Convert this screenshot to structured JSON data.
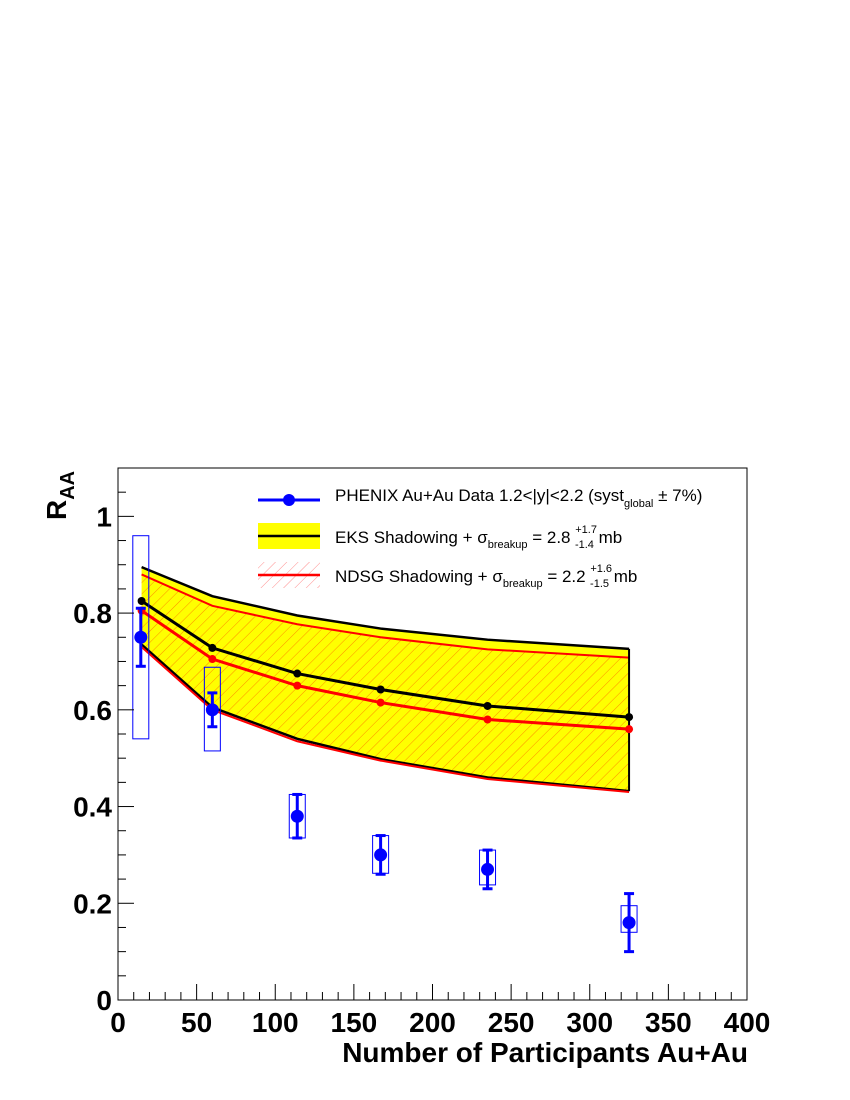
{
  "chart_data": {
    "type": "line",
    "xlabel": "Number of Participants Au+Au",
    "ylabel": "R",
    "ylabel_sub": "AA",
    "xlim": [
      0,
      400
    ],
    "ylim": [
      0,
      1.1
    ],
    "x_ticks": [
      0,
      50,
      100,
      150,
      200,
      250,
      300,
      350,
      400
    ],
    "x_tick_labels": [
      "0",
      "50",
      "100",
      "150",
      "200",
      "250",
      "300",
      "350",
      "400"
    ],
    "y_ticks": [
      0,
      0.2,
      0.4,
      0.6,
      0.8,
      1.0
    ],
    "y_tick_labels": [
      "0",
      "0.2",
      "0.4",
      "0.6",
      "0.8",
      "1"
    ],
    "grid": false,
    "legend_position": "top-right",
    "data_series": {
      "name": "PHENIX Au+Au Data 1.2<|y|<2.2 (syst",
      "name_sub": "global",
      "name_suffix": " ± 7%)",
      "color": "#0000ff",
      "x": [
        14.5,
        60,
        114,
        167,
        235,
        325
      ],
      "y": [
        0.75,
        0.6,
        0.38,
        0.3,
        0.27,
        0.16
      ],
      "stat_err": [
        0.06,
        0.035,
        0.045,
        0.04,
        0.04,
        0.06
      ],
      "syst_low": [
        0.54,
        0.515,
        0.335,
        0.262,
        0.238,
        0.14
      ],
      "syst_high": [
        0.96,
        0.688,
        0.425,
        0.34,
        0.31,
        0.195
      ]
    },
    "eks_band": {
      "name": "EKS Shadowing + σ",
      "name_sub": "breakup",
      "name_value": " = 2.8 ",
      "name_sup_err": "+1.7",
      "name_sub_err": "-1.4",
      "name_unit": " mb",
      "fill_color": "#ffff00",
      "line_color": "#000000",
      "x": [
        15,
        60,
        114,
        167,
        235,
        325
      ],
      "central": [
        0.825,
        0.728,
        0.675,
        0.642,
        0.608,
        0.585
      ],
      "upper": [
        0.895,
        0.835,
        0.795,
        0.768,
        0.745,
        0.726
      ],
      "lower": [
        0.735,
        0.605,
        0.54,
        0.498,
        0.46,
        0.432
      ]
    },
    "ndsg_band": {
      "name": "NDSG Shadowing + σ",
      "name_sub": "breakup",
      "name_value": " = 2.2 ",
      "name_sup_err": "+1.6",
      "name_sub_err": "-1.5",
      "name_unit": " mb",
      "line_color": "#ff0000",
      "hatch_color": "#ff0000",
      "x": [
        15,
        60,
        114,
        167,
        235,
        325
      ],
      "central": [
        0.805,
        0.705,
        0.65,
        0.615,
        0.58,
        0.56
      ],
      "upper": [
        0.88,
        0.815,
        0.777,
        0.75,
        0.725,
        0.708
      ],
      "lower": [
        0.73,
        0.6,
        0.535,
        0.495,
        0.457,
        0.43
      ]
    }
  }
}
